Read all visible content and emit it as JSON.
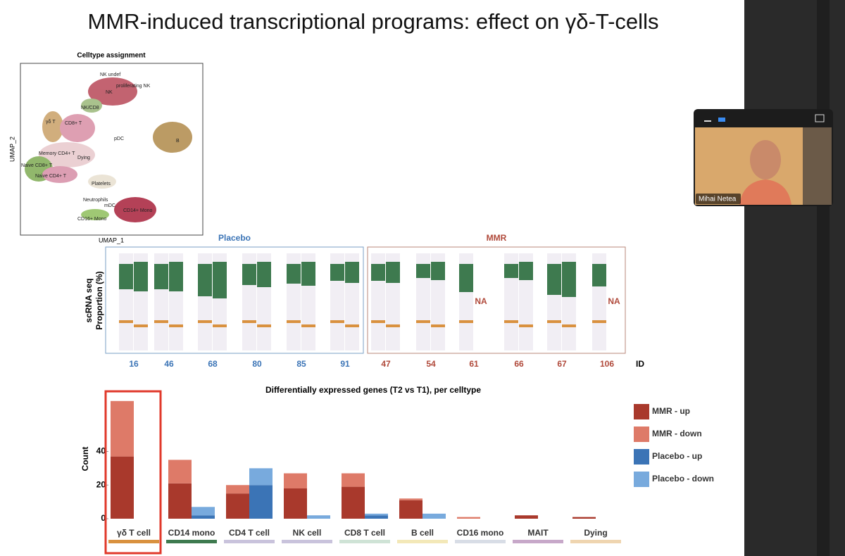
{
  "slide": {
    "title": "MMR-induced transcriptional programs: effect on γδ-T-cells"
  },
  "umap": {
    "title": "Celltype assignment",
    "x_label": "UMAP_1",
    "y_label": "UMAP_2",
    "clusters": [
      "NK undef",
      "proliferating NK",
      "NK",
      "NK/CD8",
      "γδ T",
      "CD8+ T",
      "pDC",
      "B",
      "Memory CD4+ T",
      "Dying",
      "Naive CD8+ T",
      "Naive CD4+ T",
      "Platelets",
      "Neutrophils",
      "mDC",
      "CD14+ Mono",
      "CD16+ Mono"
    ]
  },
  "proportions": {
    "y_label": "scRNA seq",
    "y_label2": "Proportion (%)",
    "groups": [
      "Placebo",
      "MMR"
    ],
    "placebo_ids": [
      "16",
      "46",
      "68",
      "80",
      "85",
      "91"
    ],
    "mmr_ids": [
      "47",
      "54",
      "61",
      "66",
      "67",
      "106"
    ],
    "id_label": "ID",
    "na": "NA"
  },
  "chart_data": {
    "type": "bar",
    "title": "Differentially expressed genes (T2 vs T1), per celltype",
    "y_label": "Count",
    "categories": [
      "γδ T cell",
      "CD14 mono",
      "CD4 T cell",
      "NK cell",
      "CD8 T cell",
      "B cell",
      "CD16 mono",
      "MAIT",
      "Dying"
    ],
    "category_colors": [
      "#d9913f",
      "#3e7a4f",
      "#c9c3dc",
      "#c9c3dc",
      "#cfe3d6",
      "#f3e8b8",
      "#d8dde6",
      "#c7a8c9",
      "#efd5b0"
    ],
    "series": [
      {
        "name": "MMR - up",
        "color": "#a9392c",
        "stack": "MMR",
        "values": [
          37,
          21,
          15,
          18,
          19,
          11,
          0,
          2,
          1
        ]
      },
      {
        "name": "MMR - down",
        "color": "#de7a68",
        "stack": "MMR",
        "values": [
          33,
          14,
          5,
          9,
          8,
          1,
          1,
          0,
          0
        ]
      },
      {
        "name": "Placebo - up",
        "color": "#3b74b6",
        "stack": "Placebo",
        "values": [
          0,
          2,
          20,
          0,
          2,
          0,
          0,
          0,
          0
        ]
      },
      {
        "name": "Placebo - down",
        "color": "#78aadd",
        "stack": "Placebo",
        "values": [
          0,
          5,
          10,
          2,
          1,
          3,
          0,
          0,
          0
        ]
      }
    ],
    "ylim": [
      0,
      72
    ],
    "yticks": [
      0,
      20,
      40
    ],
    "highlight": "γδ T cell"
  },
  "video": {
    "name": "Mihai Netea"
  }
}
